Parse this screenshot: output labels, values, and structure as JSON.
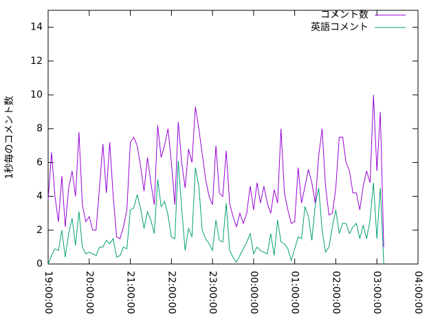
{
  "chart_data": {
    "type": "line",
    "y_label": "1秒毎のコメント数",
    "x": [
      "19:00:00",
      "19:05:00",
      "19:10:00",
      "19:15:00",
      "19:20:00",
      "19:25:00",
      "19:30:00",
      "19:35:00",
      "19:40:00",
      "19:45:00",
      "19:50:00",
      "19:55:00",
      "20:00:00",
      "20:05:00",
      "20:10:00",
      "20:15:00",
      "20:20:00",
      "20:25:00",
      "20:30:00",
      "20:35:00",
      "20:40:00",
      "20:45:00",
      "20:50:00",
      "20:55:00",
      "21:00:00",
      "21:05:00",
      "21:10:00",
      "21:15:00",
      "21:20:00",
      "21:25:00",
      "21:30:00",
      "21:35:00",
      "21:40:00",
      "21:45:00",
      "21:50:00",
      "21:55:00",
      "22:00:00",
      "22:05:00",
      "22:10:00",
      "22:15:00",
      "22:20:00",
      "22:25:00",
      "22:30:00",
      "22:35:00",
      "22:40:00",
      "22:45:00",
      "22:50:00",
      "22:55:00",
      "23:00:00",
      "23:05:00",
      "23:10:00",
      "23:15:00",
      "23:20:00",
      "23:25:00",
      "23:30:00",
      "23:35:00",
      "23:40:00",
      "23:45:00",
      "23:50:00",
      "23:55:00",
      "00:00:00",
      "00:05:00",
      "00:10:00",
      "00:15:00",
      "00:20:00",
      "00:25:00",
      "00:30:00",
      "00:35:00",
      "00:40:00",
      "00:45:00",
      "00:50:00",
      "00:55:00",
      "01:00:00",
      "01:05:00",
      "01:10:00",
      "01:15:00",
      "01:20:00",
      "01:25:00",
      "01:30:00",
      "01:35:00",
      "01:40:00",
      "01:45:00",
      "01:50:00",
      "01:55:00",
      "02:00:00",
      "02:05:00",
      "02:10:00",
      "02:15:00",
      "02:20:00",
      "02:25:00",
      "02:30:00",
      "02:35:00",
      "02:40:00",
      "02:45:00",
      "02:50:00",
      "02:55:00",
      "03:00:00",
      "03:05:00",
      "03:10:00"
    ],
    "series": [
      {
        "name": "コメント数",
        "color": "#9400d3",
        "values": [
          3.8,
          6.6,
          4,
          2.5,
          5.2,
          2.2,
          4.5,
          5.5,
          4,
          7.8,
          3.5,
          2.5,
          2.8,
          2,
          2,
          4.5,
          7.1,
          4.2,
          7.2,
          4,
          1.6,
          1.5,
          2.2,
          3.2,
          7.2,
          7.5,
          7,
          5.8,
          4.3,
          6.3,
          4.8,
          3.5,
          8.2,
          6.3,
          7,
          8,
          6,
          3.5,
          8.4,
          6,
          4.5,
          6.8,
          6,
          9.3,
          8,
          6.5,
          5,
          4,
          3.5,
          7,
          4.2,
          4,
          6.7,
          3.6,
          2.8,
          2.2,
          3,
          2.4,
          3,
          4.6,
          3.2,
          4.8,
          3.6,
          4.6,
          3.6,
          3,
          4.4,
          3.6,
          8,
          4.2,
          3.2,
          2.4,
          2.5,
          5.7,
          3.6,
          4.6,
          5.6,
          4.8,
          3.6,
          6.4,
          8,
          4.6,
          2.9,
          3,
          4.5,
          7.5,
          7.5,
          6,
          5.5,
          4.2,
          4.2,
          3.2,
          4.6,
          5.5,
          4.8,
          10,
          5.5,
          9,
          1
        ]
      },
      {
        "name": "英語コメント",
        "color": "#009e73",
        "values": [
          0,
          0.5,
          0.9,
          0.8,
          2,
          0.4,
          1.8,
          2.7,
          1.1,
          3.1,
          1,
          0.6,
          0.7,
          0.6,
          0.5,
          1,
          1,
          1.4,
          1.2,
          1.5,
          0.4,
          0.5,
          1,
          0.9,
          3.2,
          3.3,
          4.1,
          3.3,
          2.1,
          3.1,
          2.6,
          1.8,
          5,
          3.4,
          3.7,
          2.9,
          1.6,
          1.5,
          6.1,
          3.3,
          0.8,
          2.1,
          1.6,
          5.7,
          4.6,
          2,
          1.5,
          1.2,
          0.8,
          2.6,
          1.4,
          1.3,
          3.6,
          0.8,
          0.4,
          0.1,
          0.5,
          0.9,
          1.3,
          1.8,
          0.6,
          1,
          0.8,
          0.7,
          0.6,
          1.8,
          0.5,
          2.6,
          1.3,
          1.2,
          0.9,
          0.2,
          0.9,
          1.6,
          1.5,
          3.4,
          2.8,
          1.4,
          3.5,
          4.5,
          2,
          0.7,
          1,
          2.2,
          3.2,
          1.8,
          2.4,
          2.4,
          1.8,
          2.2,
          2.4,
          1.5,
          2.3,
          1.5,
          2.6,
          4.8,
          1.5,
          4.5,
          0
        ]
      }
    ],
    "xlim": [
      "19:00:00",
      "04:00:00"
    ],
    "xticks": [
      "19:00:00",
      "20:00:00",
      "21:00:00",
      "22:00:00",
      "23:00:00",
      "00:00:00",
      "01:00:00",
      "02:00:00",
      "03:00:00",
      "04:00:00"
    ],
    "ylim": [
      0,
      15
    ],
    "yticks": [
      0,
      2,
      4,
      6,
      8,
      10,
      12,
      14
    ],
    "legend": "top-right"
  }
}
